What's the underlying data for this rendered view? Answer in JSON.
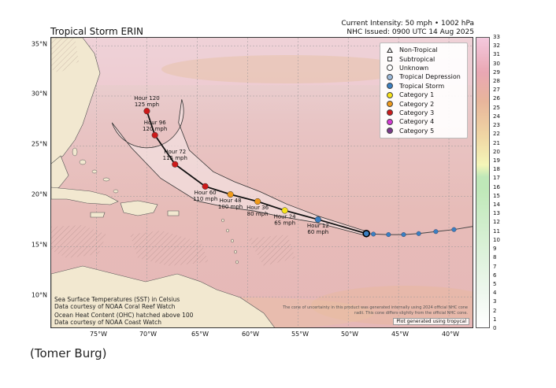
{
  "title": "Tropical Storm ERIN",
  "intensity_line": "Current Intensity: 50 mph • 1002 hPa",
  "issued_line": "NHC Issued: 0900 UTC 14 Aug 2025",
  "credit": "(Tomer Burg)",
  "lat_ticks": [
    "35°N",
    "30°N",
    "25°N",
    "20°N",
    "15°N",
    "10°N"
  ],
  "lon_ticks": [
    "75°W",
    "70°W",
    "65°W",
    "60°W",
    "55°W",
    "50°W",
    "45°W",
    "40°W"
  ],
  "colorbar_ticks": [
    0,
    1,
    2,
    3,
    4,
    5,
    6,
    7,
    8,
    9,
    10,
    11,
    12,
    13,
    14,
    15,
    16,
    17,
    18,
    19,
    20,
    21,
    22,
    23,
    24,
    25,
    26,
    27,
    28,
    29,
    30,
    31,
    32,
    33
  ],
  "legend": [
    {
      "label": "Non-Tropical",
      "marker": "triangle-outline-icon",
      "color": "#333333"
    },
    {
      "label": "Subtropical",
      "marker": "square-outline-icon",
      "color": "#333333"
    },
    {
      "label": "Unknown",
      "marker": "circle-outline-icon",
      "color": "#ffffff"
    },
    {
      "label": "Tropical Depression",
      "marker": "circle-icon",
      "color": "#9bb8d8"
    },
    {
      "label": "Tropical Storm",
      "marker": "circle-icon",
      "color": "#3a7fc1"
    },
    {
      "label": "Category 1",
      "marker": "circle-icon",
      "color": "#f7e318"
    },
    {
      "label": "Category 2",
      "marker": "circle-icon",
      "color": "#f09a1a"
    },
    {
      "label": "Category 3",
      "marker": "circle-icon",
      "color": "#cc1a1a"
    },
    {
      "label": "Category 4",
      "marker": "circle-icon",
      "color": "#d43ad4"
    },
    {
      "label": "Category 5",
      "marker": "circle-icon",
      "color": "#7a3a8a"
    }
  ],
  "forecast_points": [
    {
      "label": "Hour 12",
      "wind": "60 mph",
      "lon": -53.0,
      "lat": 17.7,
      "color": "#3a7fc1"
    },
    {
      "label": "Hour 24",
      "wind": "65 mph",
      "lon": -56.3,
      "lat": 18.6,
      "color": "#f7e318"
    },
    {
      "label": "Hour 36",
      "wind": "80 mph",
      "lon": -59.0,
      "lat": 19.5,
      "color": "#f09a1a"
    },
    {
      "label": "Hour 48",
      "wind": "100 mph",
      "lon": -61.7,
      "lat": 20.2,
      "color": "#f09a1a"
    },
    {
      "label": "Hour 60",
      "wind": "110 mph",
      "lon": -64.2,
      "lat": 21.0,
      "color": "#cc1a1a"
    },
    {
      "label": "Hour 72",
      "wind": "115 mph",
      "lon": -67.2,
      "lat": 23.2,
      "color": "#cc1a1a"
    },
    {
      "label": "Hour 96",
      "wind": "120 mph",
      "lon": -69.2,
      "lat": 26.1,
      "color": "#cc1a1a"
    },
    {
      "label": "Hour 120",
      "wind": "125 mph",
      "lon": -70.0,
      "lat": 28.5,
      "color": "#cc1a1a"
    }
  ],
  "current_position": {
    "lon": -48.2,
    "lat": 16.3,
    "color": "#3a7fc1"
  },
  "past_track": [
    {
      "lon": -47.5,
      "lat": 16.25
    },
    {
      "lon": -46.0,
      "lat": 16.2
    },
    {
      "lon": -44.5,
      "lat": 16.2
    },
    {
      "lon": -43.0,
      "lat": 16.3
    },
    {
      "lon": -41.3,
      "lat": 16.5
    },
    {
      "lon": -39.5,
      "lat": 16.7
    }
  ],
  "sst_note_1": "Sea Surface Temperatures (SST) in Celsius",
  "sst_note_2": "Data courtesy of NOAA Coral Reef Watch",
  "ohc_note_1": "Ocean Heat Content (OHC) hatched above 100",
  "ohc_note_2": "Data courtesy of NOAA Coast Watch",
  "disclaimer": "The cone of uncertainty in this product was generated internally using 2024 official NHC cone radii. This cone differs slightly from the official NHC cone.",
  "plot_generated": "Plot generated using tropycal"
}
